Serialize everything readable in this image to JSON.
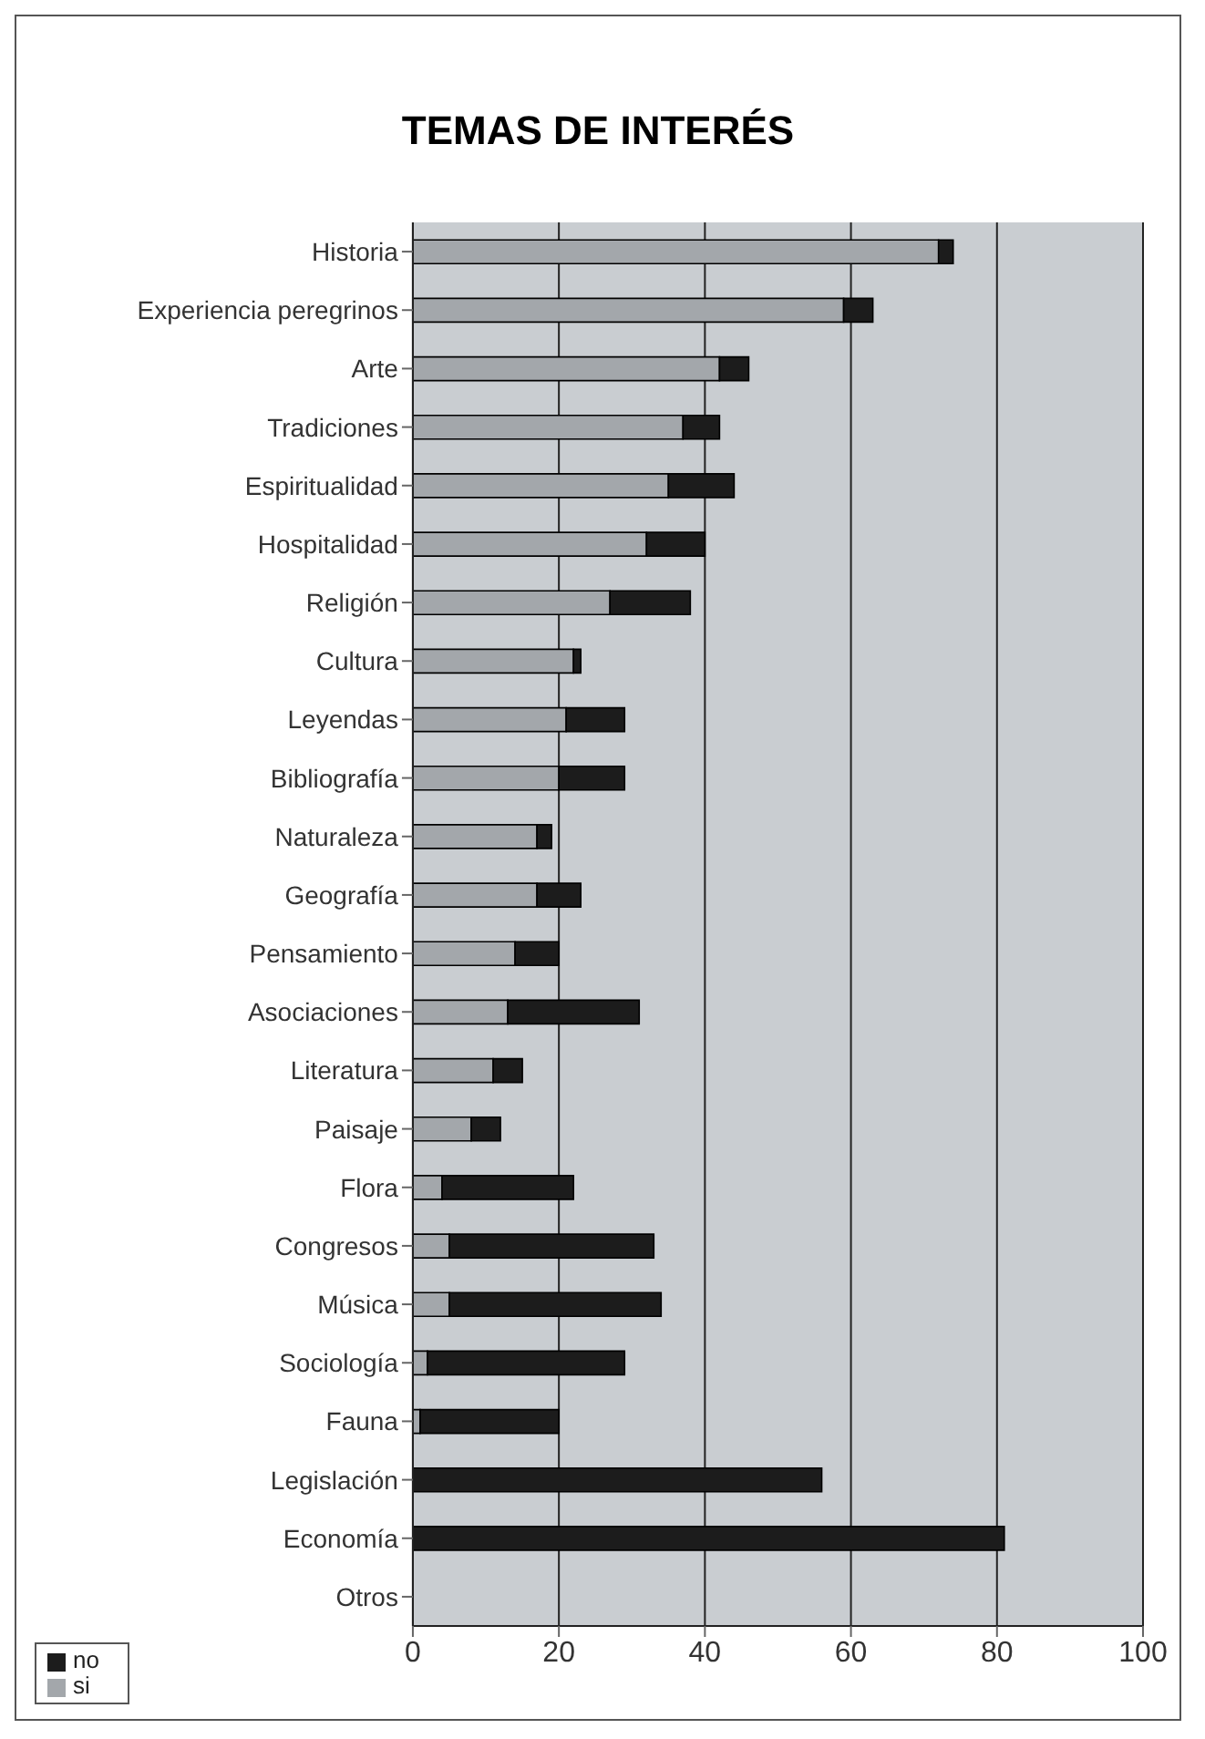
{
  "chart_data": {
    "type": "bar",
    "orientation": "horizontal",
    "stacked": true,
    "title": "TEMAS DE INTERÉS",
    "categories": [
      "Historia",
      "Experiencia peregrinos",
      "Arte",
      "Tradiciones",
      "Espiritualidad",
      "Hospitalidad",
      "Religión",
      "Cultura",
      "Leyendas",
      "Bibliografía",
      "Naturaleza",
      "Geografía",
      "Pensamiento",
      "Asociaciones",
      "Literatura",
      "Paisaje",
      "Flora",
      "Congresos",
      "Música",
      "Sociología",
      "Fauna",
      "Legislación",
      "Economía",
      "Otros"
    ],
    "series": [
      {
        "name": "si",
        "color": "#a3a7ab",
        "values": [
          72,
          59,
          42,
          37,
          35,
          32,
          27,
          22,
          21,
          20,
          17,
          17,
          14,
          13,
          11,
          8,
          4,
          5,
          5,
          2,
          1,
          0,
          0,
          0
        ]
      },
      {
        "name": "no",
        "color": "#1c1c1c",
        "values": [
          2,
          4,
          4,
          5,
          9,
          8,
          11,
          1,
          8,
          9,
          2,
          6,
          6,
          18,
          4,
          4,
          18,
          28,
          29,
          27,
          19,
          56,
          81,
          0
        ]
      }
    ],
    "xlim": [
      0,
      100
    ],
    "xticks": [
      0,
      20,
      40,
      60,
      80,
      100
    ],
    "grid": "x",
    "legend": "bottom left"
  }
}
